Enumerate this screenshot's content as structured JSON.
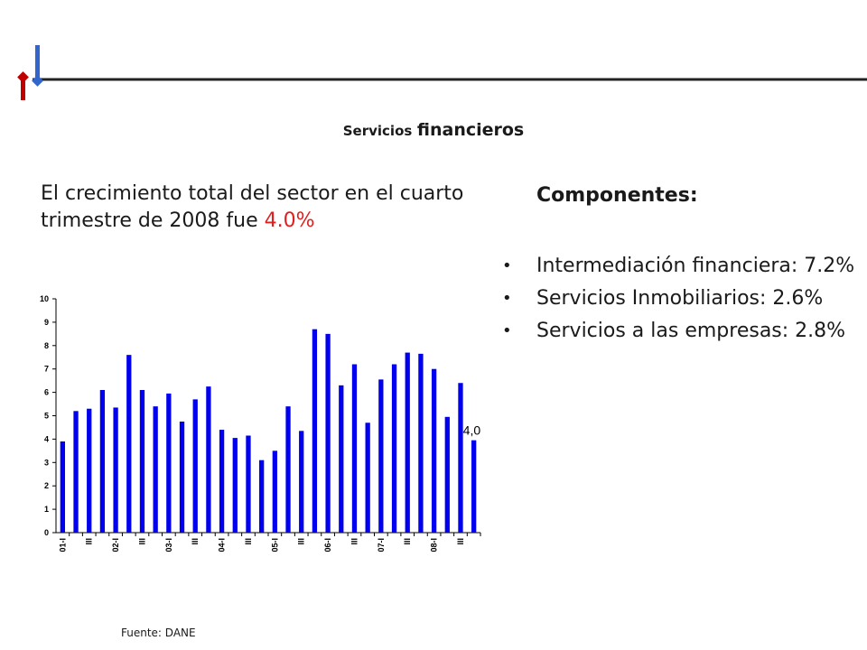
{
  "header": {
    "title_small": "Servicios",
    "title_big": "financieros"
  },
  "lead": {
    "text": "El crecimiento total del sector en el cuarto trimestre de 2008 fue",
    "value": "4.0%"
  },
  "components": {
    "heading": "Componentes:",
    "items": [
      {
        "label": "Intermediación financiera: 7.2%"
      },
      {
        "label": "Servicios Inmobiliarios: 2.6%"
      },
      {
        "label": "Servicios a las empresas: 2.8%"
      }
    ]
  },
  "source": "Fuente: DANE",
  "colors": {
    "bar": "#0000ee",
    "accent_red": "#c00000",
    "accent_blue": "#3366cc"
  },
  "chart_data": {
    "type": "bar",
    "ylim": [
      0,
      10
    ],
    "yticks": [
      "0",
      "1",
      "2",
      "3",
      "4",
      "5",
      "6",
      "7",
      "8",
      "9",
      "10"
    ],
    "categories": [
      "01-I",
      "",
      "III",
      "",
      "02-I",
      "",
      "III",
      "",
      "03-I",
      "",
      "III",
      "",
      "04-I",
      "",
      "III",
      "",
      "05-I",
      "",
      "III",
      "",
      "06-I",
      "",
      "III",
      "",
      "07-I",
      "",
      "III",
      "",
      "08-I",
      "",
      "III",
      ""
    ],
    "values": [
      3.9,
      5.2,
      5.3,
      6.1,
      5.35,
      7.6,
      6.1,
      5.4,
      5.95,
      4.75,
      5.7,
      6.25,
      4.4,
      4.05,
      4.15,
      3.1,
      3.5,
      5.4,
      4.35,
      8.7,
      8.5,
      6.3,
      7.2,
      4.7,
      6.55,
      7.2,
      7.7,
      7.65,
      7.0,
      4.95,
      6.4,
      3.95
    ],
    "annotation": "4,0",
    "grid": false
  }
}
